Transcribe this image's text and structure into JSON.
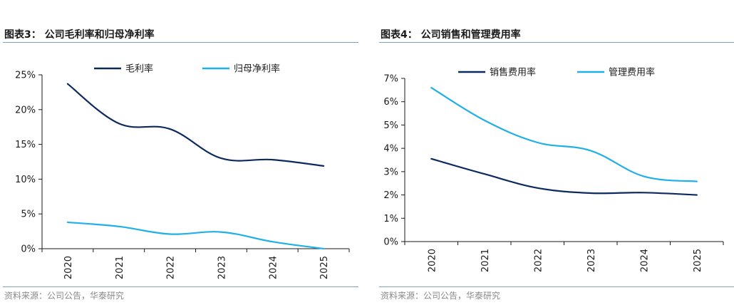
{
  "chart_data": [
    {
      "type": "line",
      "title": "图表3：  公司毛利率和归母净利率",
      "source": "资料来源：公司公告，华泰研究",
      "categories": [
        "2020",
        "2021",
        "2022",
        "2023",
        "2024",
        "2025"
      ],
      "yticks": [
        "0%",
        "5%",
        "10%",
        "15%",
        "20%",
        "25%"
      ],
      "ylim": [
        0,
        25
      ],
      "legend_position": "top",
      "grid": false,
      "series": [
        {
          "name": "毛利率",
          "color": "#0d2a5e",
          "values": [
            23.7,
            18.0,
            17.2,
            13.0,
            12.8,
            11.9
          ]
        },
        {
          "name": "归母净利率",
          "color": "#1fb0e8",
          "values": [
            3.8,
            3.2,
            2.1,
            2.4,
            1.0,
            0.0
          ]
        }
      ]
    },
    {
      "type": "line",
      "title": "图表4：  公司销售和管理费用率",
      "source": "资料来源：公司公告，华泰研究",
      "categories": [
        "2020",
        "2021",
        "2022",
        "2023",
        "2024",
        "2025"
      ],
      "yticks": [
        "0%",
        "1%",
        "2%",
        "3%",
        "4%",
        "5%",
        "6%",
        "7%"
      ],
      "ylim": [
        0,
        7
      ],
      "legend_position": "top",
      "grid": false,
      "series": [
        {
          "name": "销售费用率",
          "color": "#0d2a5e",
          "values": [
            3.55,
            2.9,
            2.3,
            2.08,
            2.1,
            2.0
          ]
        },
        {
          "name": "管理费用率",
          "color": "#1fb0e8",
          "values": [
            6.6,
            5.2,
            4.25,
            3.9,
            2.8,
            2.58
          ]
        }
      ]
    }
  ]
}
